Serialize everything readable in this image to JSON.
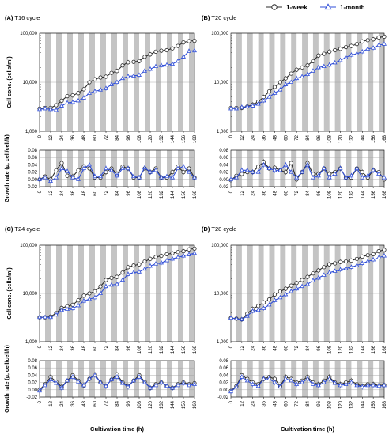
{
  "legend": {
    "items": [
      {
        "label": "1-week",
        "color": "#2b2b2b",
        "marker": "circle-marker-icon"
      },
      {
        "label": "1-month",
        "color": "#2f4ed8",
        "marker": "triangle-marker-icon"
      }
    ]
  },
  "x_axis_title": "Cultivation time (h)",
  "cell_ylabel": "Cell conc. (cells/ml)",
  "growth_ylabel": "Growth rate (μ, cell/cell/h)",
  "cell_ticks": [
    "100,000",
    "10,000",
    "1,000"
  ],
  "growth_ticks": [
    "0.08",
    "0.06",
    "0.04",
    "0.02",
    "0.00",
    "-0.02"
  ],
  "x_ticks": [
    "0",
    "12",
    "24",
    "36",
    "48",
    "60",
    "72",
    "84",
    "96",
    "108",
    "120",
    "132",
    "144",
    "156",
    "168"
  ],
  "colors": {
    "week": "#2b2b2b",
    "month": "#2f4ed8",
    "dark_band": "#c4c4c4"
  },
  "chart_data": [
    {
      "panel": "A",
      "title": "T16 cycle",
      "type": "line",
      "x": [
        0,
        6,
        12,
        18,
        24,
        30,
        36,
        42,
        48,
        54,
        60,
        66,
        72,
        78,
        84,
        90,
        96,
        102,
        108,
        114,
        120,
        126,
        132,
        138,
        144,
        150,
        156,
        162,
        168
      ],
      "cell": {
        "yscale": "log",
        "ylim": [
          1000,
          100000
        ],
        "series": [
          {
            "name": "1-week",
            "values": [
              2900,
              3000,
              3000,
              3400,
              4200,
              5200,
              5400,
              6000,
              7200,
              10000,
              11500,
              12500,
              13000,
              15500,
              17000,
              22000,
              25500,
              26000,
              27000,
              33000,
              37000,
              42000,
              44000,
              45000,
              49000,
              55000,
              65000,
              69000,
              70000
            ]
          },
          {
            "name": "1-month",
            "values": [
              2800,
              2900,
              2800,
              2700,
              3300,
              3800,
              3900,
              4200,
              4800,
              6000,
              6500,
              7000,
              7500,
              9000,
              10000,
              12000,
              13200,
              13500,
              14000,
              17000,
              18500,
              21000,
              22000,
              22500,
              23500,
              27000,
              33000,
              43000,
              44000
            ]
          }
        ]
      },
      "growth": {
        "ylim": [
          -0.02,
          0.08
        ],
        "series": [
          {
            "name": "1-week",
            "values": [
              0.0,
              0.008,
              0.0,
              0.025,
              0.045,
              0.01,
              0.008,
              0.025,
              0.035,
              0.03,
              0.005,
              0.005,
              0.02,
              0.03,
              0.015,
              0.035,
              0.03,
              0.005,
              0.005,
              0.03,
              0.02,
              0.03,
              0.005,
              0.005,
              0.02,
              0.035,
              0.02,
              0.03,
              0.005
            ]
          },
          {
            "name": "1-month",
            "values": [
              0.0,
              0.005,
              -0.005,
              0.005,
              0.03,
              0.022,
              0.005,
              0.0,
              0.03,
              0.04,
              0.008,
              0.008,
              0.03,
              0.025,
              0.01,
              0.03,
              0.03,
              0.008,
              0.005,
              0.032,
              0.02,
              0.025,
              0.005,
              0.008,
              0.005,
              0.03,
              0.035,
              0.02,
              0.005
            ]
          }
        ]
      }
    },
    {
      "panel": "B",
      "title": "T20 cycle",
      "type": "line",
      "x": [
        0,
        6,
        12,
        18,
        24,
        30,
        36,
        42,
        48,
        54,
        60,
        66,
        72,
        78,
        84,
        90,
        96,
        102,
        108,
        114,
        120,
        126,
        132,
        138,
        144,
        150,
        156,
        162,
        168
      ],
      "cell": {
        "yscale": "log",
        "ylim": [
          1000,
          100000
        ],
        "series": [
          {
            "name": "1-week",
            "values": [
              3000,
              3000,
              3000,
              3200,
              3500,
              4000,
              5000,
              6500,
              8000,
              10000,
              12000,
              15000,
              18000,
              20000,
              22000,
              27000,
              35000,
              38000,
              42000,
              45000,
              48000,
              52000,
              55000,
              60000,
              68000,
              72000,
              75000,
              82000,
              85000
            ]
          },
          {
            "name": "1-month",
            "values": [
              2900,
              2900,
              3100,
              3200,
              3300,
              3600,
              4200,
              5000,
              6000,
              7000,
              9000,
              10000,
              12000,
              13000,
              14500,
              17000,
              20000,
              21000,
              22500,
              25000,
              28000,
              32000,
              36000,
              38000,
              42000,
              48000,
              50000,
              57000,
              60000
            ]
          }
        ]
      },
      "growth": {
        "ylim": [
          -0.02,
          0.08
        ],
        "series": [
          {
            "name": "1-week",
            "values": [
              -0.002,
              0.01,
              0.015,
              0.02,
              0.02,
              0.035,
              0.048,
              0.03,
              0.032,
              0.025,
              0.02,
              0.045,
              0.0,
              0.02,
              0.045,
              0.015,
              0.015,
              0.03,
              0.015,
              0.02,
              0.03,
              0.005,
              0.005,
              0.03,
              0.02,
              0.005,
              0.025,
              0.02,
              0.0
            ]
          },
          {
            "name": "1-month",
            "values": [
              0.0,
              0.005,
              0.025,
              0.025,
              0.02,
              0.02,
              0.04,
              0.03,
              0.025,
              0.025,
              0.04,
              0.02,
              0.005,
              0.02,
              0.04,
              0.005,
              0.01,
              0.03,
              0.005,
              0.015,
              0.03,
              0.005,
              0.01,
              0.03,
              0.005,
              0.01,
              0.025,
              0.015,
              0.005
            ]
          }
        ]
      }
    },
    {
      "panel": "C",
      "title": "T24 cycle",
      "type": "line",
      "x": [
        0,
        6,
        12,
        18,
        24,
        30,
        36,
        42,
        48,
        54,
        60,
        66,
        72,
        78,
        84,
        90,
        96,
        102,
        108,
        114,
        120,
        126,
        132,
        138,
        144,
        150,
        156,
        162,
        168
      ],
      "cell": {
        "yscale": "log",
        "ylim": [
          1000,
          100000
        ],
        "series": [
          {
            "name": "1-week",
            "values": [
              3200,
              3200,
              3300,
              3900,
              5000,
              5400,
              5800,
              7200,
              9000,
              10000,
              11000,
              14000,
              19000,
              21000,
              22000,
              27000,
              35000,
              38000,
              40000,
              46000,
              52000,
              57000,
              60000,
              65000,
              68000,
              72000,
              75000,
              82000,
              85000
            ]
          },
          {
            "name": "1-month",
            "values": [
              3200,
              3200,
              3200,
              3600,
              4500,
              4700,
              4900,
              5600,
              7000,
              7600,
              8200,
              10000,
              14000,
              15000,
              15500,
              19000,
              25000,
              27000,
              28000,
              32000,
              37000,
              41000,
              43000,
              48000,
              52000,
              56000,
              60000,
              64000,
              68000
            ]
          }
        ]
      },
      "growth": {
        "ylim": [
          -0.02,
          0.08
        ],
        "series": [
          {
            "name": "1-week",
            "values": [
              0.0,
              0.015,
              0.035,
              0.022,
              0.008,
              0.025,
              0.04,
              0.025,
              0.012,
              0.03,
              0.042,
              0.02,
              0.01,
              0.028,
              0.042,
              0.02,
              0.01,
              0.025,
              0.04,
              0.022,
              0.005,
              0.015,
              0.02,
              0.01,
              0.005,
              0.015,
              0.02,
              0.015,
              0.018
            ]
          },
          {
            "name": "1-month",
            "values": [
              -0.003,
              0.012,
              0.028,
              0.018,
              0.005,
              0.025,
              0.035,
              0.022,
              0.012,
              0.03,
              0.04,
              0.02,
              0.01,
              0.028,
              0.035,
              0.018,
              0.008,
              0.025,
              0.035,
              0.02,
              0.005,
              0.012,
              0.02,
              0.01,
              0.005,
              0.012,
              0.018,
              0.012,
              0.015
            ]
          }
        ]
      }
    },
    {
      "panel": "D",
      "title": "T28 cycle",
      "type": "line",
      "x": [
        0,
        6,
        12,
        18,
        24,
        30,
        36,
        42,
        48,
        54,
        60,
        66,
        72,
        78,
        84,
        90,
        96,
        102,
        108,
        114,
        120,
        126,
        132,
        138,
        144,
        150,
        156,
        162,
        168
      ],
      "cell": {
        "yscale": "log",
        "ylim": [
          1000,
          100000
        ],
        "series": [
          {
            "name": "1-week",
            "values": [
              3100,
              3000,
              2900,
              3800,
              4800,
              5500,
              6500,
              7500,
              9500,
              11000,
              12500,
              14500,
              16500,
              19000,
              22000,
              26000,
              30000,
              35000,
              40000,
              42000,
              45000,
              46000,
              48000,
              52000,
              58000,
              62000,
              65000,
              75000,
              80000
            ]
          },
          {
            "name": "1-month",
            "values": [
              3100,
              3000,
              2900,
              3400,
              4300,
              4500,
              4900,
              5800,
              7200,
              8200,
              9500,
              11000,
              12500,
              14000,
              15500,
              18500,
              21000,
              24000,
              27000,
              29000,
              31000,
              33000,
              35000,
              38000,
              42000,
              46000,
              50000,
              55000,
              60000
            ]
          }
        ]
      },
      "growth": {
        "ylim": [
          -0.02,
          0.08
        ],
        "series": [
          {
            "name": "1-week",
            "values": [
              -0.003,
              0.01,
              0.04,
              0.03,
              0.02,
              0.015,
              0.03,
              0.035,
              0.03,
              0.01,
              0.035,
              0.03,
              0.02,
              0.025,
              0.035,
              0.02,
              0.015,
              0.025,
              0.035,
              0.02,
              0.015,
              0.02,
              0.025,
              0.015,
              0.01,
              0.015,
              0.015,
              0.012,
              0.013
            ]
          },
          {
            "name": "1-month",
            "values": [
              -0.005,
              0.008,
              0.035,
              0.025,
              0.015,
              0.01,
              0.03,
              0.03,
              0.02,
              0.008,
              0.03,
              0.025,
              0.015,
              0.02,
              0.03,
              0.015,
              0.012,
              0.02,
              0.03,
              0.018,
              0.012,
              0.015,
              0.02,
              0.012,
              0.008,
              0.012,
              0.012,
              0.01,
              0.012
            ]
          }
        ]
      }
    }
  ]
}
